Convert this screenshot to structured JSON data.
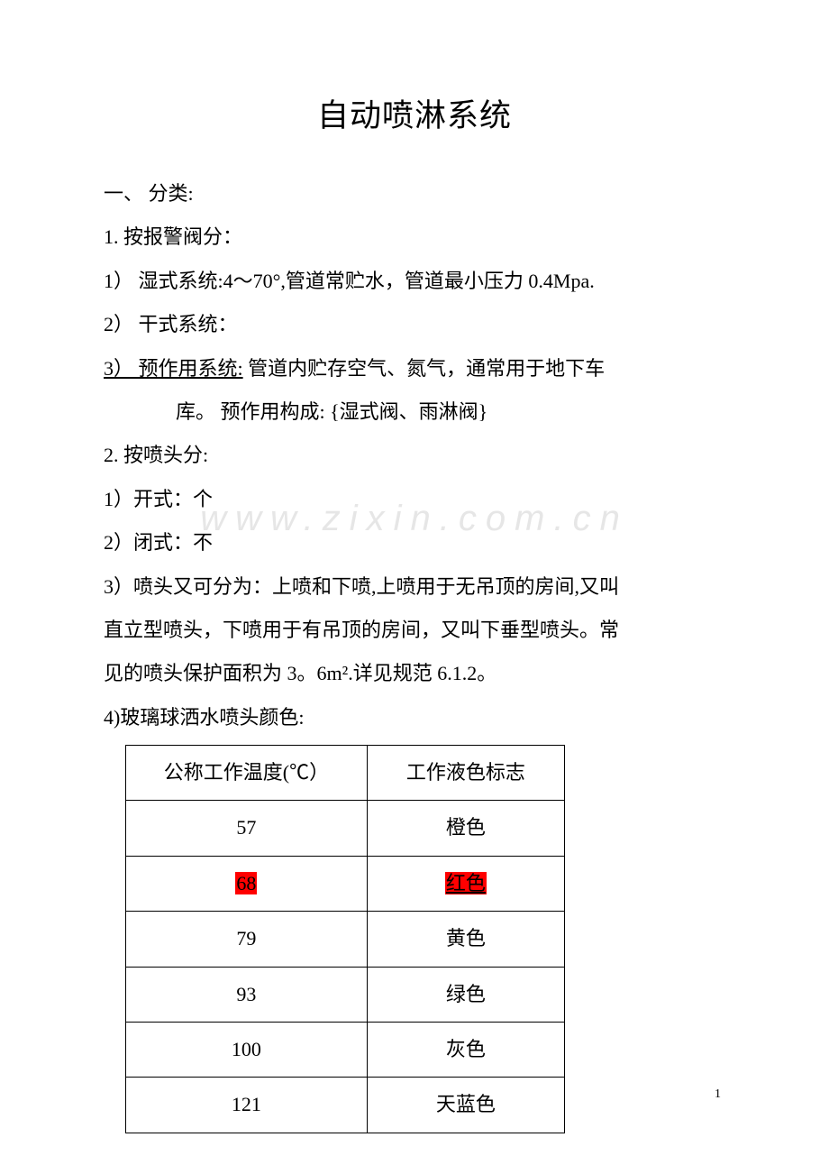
{
  "title": "自动喷淋系统",
  "section1_heading": "一、 分类:",
  "item1_1": "1. 按报警阀分：",
  "item1_1_1": "1）   湿式系统:4～70°,管道常贮水，管道最小压力 0.4Mpa.",
  "item1_1_2": "2）   干式系统：",
  "item1_1_3a": "3）   预作用系统:",
  "item1_1_3b": " 管道内贮存空气、氮气，通常用于地下车",
  "item1_1_3_line2": "库。      预作用构成: {湿式阀、雨淋阀}",
  "item1_2": "2. 按喷头分:",
  "item1_2_1": "1）开式：",
  "item1_2_1_sym": "个",
  "item1_2_2": "2）闭式：",
  "item1_2_2_sym": "不",
  "item1_2_3_line1": "3）喷头又可分为：上喷和下喷,上喷用于无吊顶的房间,又叫",
  "item1_2_3_line2": "直立型喷头，下喷用于有吊顶的房间，又叫下垂型喷头。常",
  "item1_2_3_line3": "见的喷头保护面积为 3。6m².详见规范 6.1.2。",
  "item1_2_4": "4)玻璃球洒水喷头颜色:",
  "table": {
    "header_col1": "公称工作温度(℃）",
    "header_col2": "工作液色标志",
    "rows": [
      {
        "temp": "57",
        "color": "橙色",
        "highlight": false
      },
      {
        "temp": "68",
        "color": "红色",
        "highlight": true
      },
      {
        "temp": "79",
        "color": "黄色",
        "highlight": false
      },
      {
        "temp": "93",
        "color": "绿色",
        "highlight": false
      },
      {
        "temp": "100",
        "color": "灰色",
        "highlight": false
      },
      {
        "temp": "121",
        "color": "天蓝色",
        "highlight": false
      }
    ]
  },
  "watermark": "www.zixin.com.cn",
  "page_number": "1",
  "colors": {
    "highlight_bg": "#ff0000",
    "text": "#000000",
    "watermark": "rgba(200,200,200,0.45)",
    "background": "#ffffff",
    "border": "#000000"
  },
  "typography": {
    "title_fontsize": 35,
    "body_fontsize": 22,
    "line_height": 2.2,
    "font_family": "SimSun"
  }
}
